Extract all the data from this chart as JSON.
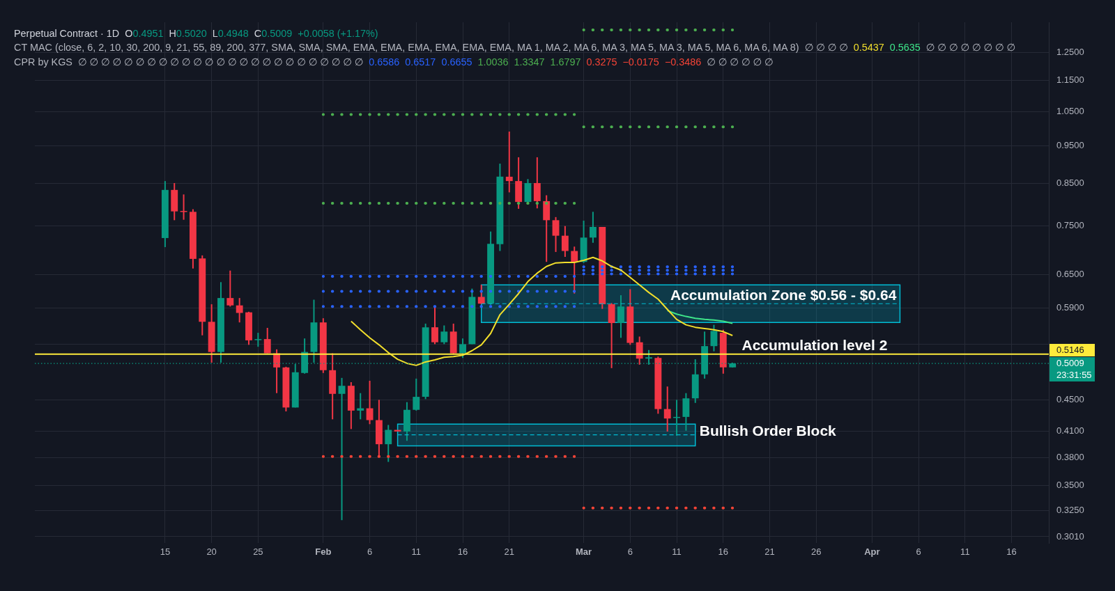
{
  "chart_data": {
    "type": "candlestick",
    "title": "Perpetual Contract · 1D",
    "annotations": [
      "O0.4951",
      "H0.5020",
      "L0.4948",
      "C0.5009",
      "+0.0058 (+1.17%)",
      "CT MAC (close, 6, 2, 10, 30, 200, 9, 21, 55, 89, 200, 377, SMA, SMA, SMA, EMA, EMA, EMA, EMA, EMA, EMA, MA 1, MA 2, MA 6, MA 3, MA 5, MA 3, MA 5, MA 6, MA 6, MA 8)",
      "∅ ∅ ∅ ∅",
      "0.5437",
      "0.5635",
      "∅ ∅ ∅ ∅ ∅ ∅ ∅ ∅",
      "CPR by KGS",
      "∅ ∅ ∅ ∅ ∅ ∅ ∅ ∅ ∅ ∅ ∅ ∅ ∅ ∅ ∅ ∅ ∅ ∅ ∅ ∅ ∅ ∅ ∅ ∅ ∅",
      "0.6586",
      "0.6517",
      "0.6655",
      "1.0036",
      "1.3347",
      "1.6797",
      "0.3275",
      "−0.0175",
      "−0.3486",
      "∅ ∅ ∅ ∅ ∅ ∅",
      {
        "text": "Accumulation level 2",
        "x": "--03-18",
        "y": 0.5146
      },
      "23:31:55"
    ],
    "x": [
      "--01-15",
      "--01-16",
      "--01-17",
      "--01-18",
      "--01-19",
      "--01-20",
      "--01-21",
      "--01-22",
      "--01-23",
      "--01-24",
      "--01-25",
      "--01-26",
      "--01-27",
      "--01-28",
      "--01-29",
      "--01-30",
      "--01-31",
      "--02-01",
      "--02-02",
      "--02-03",
      "--02-04",
      "--02-05",
      "--02-06",
      "--02-07",
      "--02-08",
      "--02-09",
      "--02-10",
      "--02-11",
      "--02-12",
      "--02-13",
      "--02-14",
      "--02-15",
      "--02-16",
      "--02-17",
      "--02-18",
      "--02-19",
      "--02-20",
      "--02-21",
      "--02-22",
      "--02-23",
      "--02-24",
      "--02-25",
      "--02-26",
      "--02-27",
      "--02-28",
      "--03-01",
      "--03-02",
      "--03-03",
      "--03-04",
      "--03-05",
      "--03-06",
      "--03-07",
      "--03-08",
      "--03-09",
      "--03-10",
      "--03-11",
      "--03-12",
      "--03-13",
      "--03-14",
      "--03-15",
      "--03-16",
      "--03-17"
    ],
    "ohlc": [
      [
        0.724,
        0.856,
        0.705,
        0.834
      ],
      [
        0.834,
        0.851,
        0.763,
        0.783
      ],
      [
        0.784,
        0.823,
        0.764,
        0.783
      ],
      [
        0.782,
        0.788,
        0.662,
        0.681
      ],
      [
        0.682,
        0.688,
        0.544,
        0.566
      ],
      [
        0.566,
        0.596,
        0.502,
        0.518
      ],
      [
        0.518,
        0.636,
        0.502,
        0.607
      ],
      [
        0.607,
        0.658,
        0.592,
        0.594
      ],
      [
        0.594,
        0.607,
        0.565,
        0.581
      ],
      [
        0.582,
        0.583,
        0.529,
        0.536
      ],
      [
        0.537,
        0.548,
        0.526,
        0.538
      ],
      [
        0.538,
        0.556,
        0.516,
        0.516
      ],
      [
        0.516,
        0.522,
        0.459,
        0.495
      ],
      [
        0.495,
        0.496,
        0.435,
        0.44
      ],
      [
        0.44,
        0.5,
        0.44,
        0.488
      ],
      [
        0.487,
        0.539,
        0.486,
        0.518
      ],
      [
        0.518,
        0.604,
        0.502,
        0.565
      ],
      [
        0.565,
        0.572,
        0.487,
        0.491
      ],
      [
        0.491,
        0.516,
        0.425,
        0.458
      ],
      [
        0.458,
        0.48,
        0.316,
        0.469
      ],
      [
        0.469,
        0.474,
        0.413,
        0.436
      ],
      [
        0.436,
        0.459,
        0.425,
        0.439
      ],
      [
        0.439,
        0.476,
        0.419,
        0.424
      ],
      [
        0.424,
        0.45,
        0.382,
        0.395
      ],
      [
        0.395,
        0.418,
        0.375,
        0.412
      ],
      [
        0.412,
        0.412,
        0.41,
        0.41
      ],
      [
        0.41,
        0.447,
        0.399,
        0.437
      ],
      [
        0.437,
        0.479,
        0.436,
        0.454
      ],
      [
        0.454,
        0.563,
        0.451,
        0.557
      ],
      [
        0.557,
        0.59,
        0.53,
        0.533
      ],
      [
        0.533,
        0.56,
        0.53,
        0.55
      ],
      [
        0.55,
        0.563,
        0.514,
        0.516
      ],
      [
        0.516,
        0.539,
        0.509,
        0.53
      ],
      [
        0.53,
        0.624,
        0.53,
        0.609
      ],
      [
        0.609,
        0.631,
        0.596,
        0.597
      ],
      [
        0.597,
        0.738,
        0.595,
        0.712
      ],
      [
        0.711,
        0.901,
        0.697,
        0.867
      ],
      [
        0.867,
        0.99,
        0.828,
        0.856
      ],
      [
        0.856,
        0.918,
        0.789,
        0.805
      ],
      [
        0.805,
        0.861,
        0.801,
        0.851
      ],
      [
        0.851,
        0.918,
        0.79,
        0.807
      ],
      [
        0.807,
        0.821,
        0.675,
        0.763
      ],
      [
        0.763,
        0.77,
        0.695,
        0.729
      ],
      [
        0.729,
        0.75,
        0.685,
        0.697
      ],
      [
        0.697,
        0.706,
        0.615,
        0.675
      ],
      [
        0.675,
        0.762,
        0.673,
        0.725
      ],
      [
        0.725,
        0.782,
        0.714,
        0.748
      ],
      [
        0.748,
        0.748,
        0.588,
        0.596
      ],
      [
        0.596,
        0.598,
        0.494,
        0.564
      ],
      [
        0.564,
        0.612,
        0.54,
        0.592
      ],
      [
        0.592,
        0.623,
        0.529,
        0.532
      ],
      [
        0.533,
        0.542,
        0.499,
        0.508
      ],
      [
        0.508,
        0.521,
        0.499,
        0.51
      ],
      [
        0.509,
        0.511,
        0.432,
        0.438
      ],
      [
        0.438,
        0.468,
        0.41,
        0.426
      ],
      [
        0.427,
        0.45,
        0.405,
        0.428
      ],
      [
        0.428,
        0.459,
        0.411,
        0.452
      ],
      [
        0.452,
        0.507,
        0.446,
        0.485
      ],
      [
        0.485,
        0.55,
        0.479,
        0.527
      ],
      [
        0.527,
        0.561,
        0.519,
        0.551
      ],
      [
        0.548,
        0.553,
        0.486,
        0.4951
      ],
      [
        0.4951,
        0.502,
        0.4948,
        0.5009
      ]
    ],
    "colors": [
      "#089981",
      "#f23645",
      "#f23645",
      "#f23645",
      "#f23645",
      "#f23645",
      "#089981",
      "#f23645",
      "#f23645",
      "#f23645",
      "#089981",
      "#f23645",
      "#f23645",
      "#f23645",
      "#089981",
      "#089981",
      "#089981",
      "#f23645",
      "#f23645",
      "#089981",
      "#f23645",
      "#089981",
      "#f23645",
      "#f23645",
      "#089981",
      "#f23645",
      "#089981",
      "#089981",
      "#089981",
      "#f23645",
      "#089981",
      "#f23645",
      "#089981",
      "#089981",
      "#f23645",
      "#089981",
      "#089981",
      "#f23645",
      "#f23645",
      "#089981",
      "#f23645",
      "#f23645",
      "#f23645",
      "#f23645",
      "#f23645",
      "#089981",
      "#089981",
      "#f23645",
      "#f23645",
      "#089981",
      "#f23645",
      "#f23645",
      "#089981",
      "#f23645",
      "#f23645",
      "#089981",
      "#089981",
      "#089981",
      "#089981",
      "#089981",
      "#f23645",
      "#089981"
    ],
    "series": [
      {
        "type": "line",
        "color": "#f2df2c",
        "x": [
          "--02-04",
          "--02-05",
          "--02-06",
          "--02-07",
          "--02-08",
          "--02-09",
          "--02-10",
          "--02-11",
          "--02-12",
          "--02-13",
          "--02-14",
          "--02-15",
          "--02-16",
          "--02-17",
          "--02-18",
          "--02-19",
          "--02-20",
          "--02-21",
          "--02-22",
          "--02-23",
          "--02-24",
          "--02-25",
          "--02-26",
          "--02-27",
          "--02-28",
          "--03-01",
          "--03-02",
          "--03-03",
          "--03-04",
          "--03-05",
          "--03-06",
          "--03-07",
          "--03-08",
          "--03-09",
          "--03-10",
          "--03-11",
          "--03-12",
          "--03-13",
          "--03-14",
          "--03-15",
          "--03-16",
          "--03-17"
        ],
        "values": [
          0.567,
          0.553,
          0.54,
          0.529,
          0.517,
          0.507,
          0.501,
          0.498,
          0.503,
          0.506,
          0.51,
          0.511,
          0.513,
          0.52,
          0.529,
          0.547,
          0.578,
          0.596,
          0.615,
          0.637,
          0.653,
          0.666,
          0.673,
          0.674,
          0.674,
          0.678,
          0.684,
          0.677,
          0.666,
          0.659,
          0.645,
          0.631,
          0.617,
          0.605,
          0.587,
          0.57,
          0.561,
          0.557,
          0.555,
          0.553,
          0.55,
          0.5437
        ]
      },
      {
        "type": "line",
        "color": "#3ee58a",
        "x": [
          "--03-10",
          "--03-11",
          "--03-12",
          "--03-13",
          "--03-14",
          "--03-15",
          "--03-16",
          "--03-17"
        ],
        "values": [
          0.585,
          0.579,
          0.575,
          0.572,
          0.57,
          0.569,
          0.567,
          0.5635
        ]
      },
      {
        "type": "line",
        "name": "Accumulation Zone $0.56 - $0.64",
        "color": "#00bcd4",
        "line_style": "dashed",
        "x": [
          "--02-18",
          "--04-04"
        ],
        "values": [
          0.597,
          0.597
        ],
        "lower": [
          0.565,
          0.565
        ],
        "upper": [
          0.631,
          0.631
        ]
      },
      {
        "type": "line",
        "name": "Bullish Order Block",
        "color": "#00bcd4",
        "line_style": "dashed",
        "x": [
          "--02-09",
          "--03-13"
        ],
        "values": [
          0.406,
          0.406
        ],
        "lower": [
          0.393,
          0.393
        ],
        "upper": [
          0.419,
          0.419
        ]
      },
      {
        "type": "line",
        "color": "#4caf50",
        "line_style": "dotted",
        "x": [
          "--02-01",
          "--02-28"
        ],
        "values": [
          1.041,
          1.041
        ]
      },
      {
        "type": "line",
        "color": "#4caf50",
        "line_style": "dotted",
        "x": [
          "--02-01",
          "--02-28"
        ],
        "values": [
          0.802,
          0.802
        ]
      },
      {
        "type": "line",
        "color": "#2962ff",
        "line_style": "dotted",
        "x": [
          "--02-01",
          "--02-28"
        ],
        "values": [
          0.647,
          0.647
        ]
      },
      {
        "type": "line",
        "color": "#2962ff",
        "line_style": "dotted",
        "x": [
          "--02-01",
          "--02-28"
        ],
        "values": [
          0.619,
          0.619
        ]
      },
      {
        "type": "line",
        "color": "#2962ff",
        "line_style": "dotted",
        "x": [
          "--02-01",
          "--02-28"
        ],
        "values": [
          0.592,
          0.592
        ]
      },
      {
        "type": "line",
        "color": "#f44336",
        "line_style": "dotted",
        "x": [
          "--02-01",
          "--02-28"
        ],
        "values": [
          0.381,
          0.381
        ]
      },
      {
        "type": "line",
        "color": "#4caf50",
        "line_style": "dotted",
        "x": [
          "--03-01",
          "--03-17"
        ],
        "values": [
          1.3347,
          1.3347
        ]
      },
      {
        "type": "line",
        "color": "#4caf50",
        "line_style": "dotted",
        "x": [
          "--03-01",
          "--03-17"
        ],
        "values": [
          1.0036,
          1.0036
        ]
      },
      {
        "type": "line",
        "color": "#2962ff",
        "line_style": "dotted",
        "x": [
          "--03-01",
          "--03-17"
        ],
        "values": [
          0.6655,
          0.6655
        ]
      },
      {
        "type": "line",
        "color": "#2962ff",
        "line_style": "dotted",
        "x": [
          "--03-01",
          "--03-17"
        ],
        "values": [
          0.6586,
          0.6586
        ]
      },
      {
        "type": "line",
        "color": "#2962ff",
        "line_style": "dotted",
        "x": [
          "--03-01",
          "--03-17"
        ],
        "values": [
          0.6517,
          0.6517
        ]
      },
      {
        "type": "line",
        "color": "#f44336",
        "line_style": "dotted",
        "x": [
          "--03-01",
          "--03-17"
        ],
        "values": [
          0.3275,
          0.3275
        ]
      }
    ],
    "ref_lines": [
      {
        "axis": "y",
        "value": 0.5146,
        "label": "0.5146",
        "color": "#ffeb3b"
      },
      {
        "axis": "y",
        "value": 0.5009,
        "label": "0.5009",
        "color": "#089981",
        "line_style": "dotted"
      }
    ],
    "xlim": [
      "--01-01",
      "--04-20"
    ],
    "xticks": [
      {
        "value": "--01-15",
        "label": "15"
      },
      {
        "value": "--01-20",
        "label": "20"
      },
      {
        "value": "--01-25",
        "label": "25"
      },
      {
        "value": "--02-01",
        "label": "Feb"
      },
      {
        "value": "--02-06",
        "label": "6"
      },
      {
        "value": "--02-11",
        "label": "11"
      },
      {
        "value": "--02-16",
        "label": "16"
      },
      {
        "value": "--02-21",
        "label": "21"
      },
      {
        "value": "--03-01",
        "label": "Mar"
      },
      {
        "value": "--03-06",
        "label": "6"
      },
      {
        "value": "--03-11",
        "label": "11"
      },
      {
        "value": "--03-16",
        "label": "16"
      },
      {
        "value": "--03-21",
        "label": "21"
      },
      {
        "value": "--03-26",
        "label": "26"
      },
      {
        "value": "--04-01",
        "label": "Apr"
      },
      {
        "value": "--04-06",
        "label": "6"
      },
      {
        "value": "--04-11",
        "label": "11"
      },
      {
        "value": "--04-16",
        "label": "16"
      }
    ],
    "ylim": [
      0.2955,
      1.365
    ],
    "yticks": [
      {
        "value": 0.301,
        "label": "0.3010"
      },
      {
        "value": 0.325,
        "label": "0.3250"
      },
      {
        "value": 0.35,
        "label": "0.3500"
      },
      {
        "value": 0.38,
        "label": "0.3800"
      },
      {
        "value": 0.41,
        "label": "0.4100"
      },
      {
        "value": 0.45,
        "label": "0.4500"
      },
      {
        "value": 0.53,
        "label": null
      },
      {
        "value": 0.59,
        "label": "0.5900"
      },
      {
        "value": 0.65,
        "label": "0.6500"
      },
      {
        "value": 0.75,
        "label": "0.7500"
      },
      {
        "value": 0.85,
        "label": "0.8500"
      },
      {
        "value": 0.95,
        "label": "0.9500"
      },
      {
        "value": 1.05,
        "label": "1.0500"
      },
      {
        "value": 1.15,
        "label": "1.1500"
      },
      {
        "value": 1.25,
        "label": "1.2500"
      }
    ],
    "log": true,
    "grid": true
  }
}
